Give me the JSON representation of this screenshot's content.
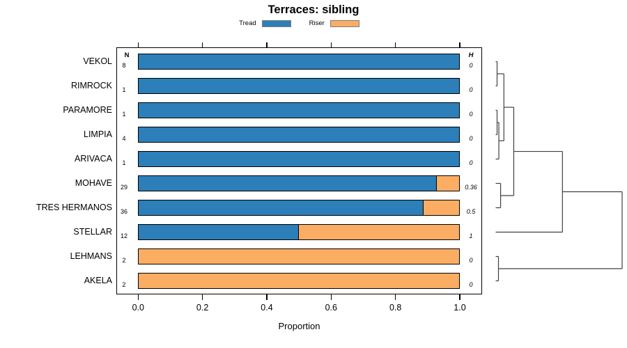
{
  "title": "Terraces: sibling",
  "legend": {
    "items": [
      {
        "label": "Tread",
        "color": "#2c7fb8"
      },
      {
        "label": "Riser",
        "color": "#fbad63"
      }
    ]
  },
  "columns": {
    "n_header": "N",
    "h_header": "H"
  },
  "axis": {
    "xlabel": "Proportion",
    "ticks": [
      {
        "label": "0.0",
        "value": 0.0
      },
      {
        "label": "0.2",
        "value": 0.2
      },
      {
        "label": "0.4",
        "value": 0.4
      },
      {
        "label": "0.6",
        "value": 0.6
      },
      {
        "label": "0.8",
        "value": 0.8
      },
      {
        "label": "1.0",
        "value": 1.0
      }
    ]
  },
  "chart_data": {
    "type": "bar",
    "orientation": "horizontal",
    "stacked": true,
    "title": "Terraces: sibling",
    "xlabel": "Proportion",
    "xlim": [
      0,
      1
    ],
    "grid": false,
    "categories": [
      "VEKOL",
      "RIMROCK",
      "PARAMORE",
      "LIMPIA",
      "ARIVACA",
      "MOHAVE",
      "TRES HERMANOS",
      "STELLAR",
      "LEHMANS",
      "AKELA"
    ],
    "series": [
      {
        "name": "Tread",
        "color": "#2c7fb8",
        "values": [
          1,
          1,
          1,
          1,
          1,
          0.931,
          0.889,
          0.5,
          0,
          0
        ]
      },
      {
        "name": "Riser",
        "color": "#fbad63",
        "values": [
          0,
          0,
          0,
          0,
          0,
          0.069,
          0.111,
          0.5,
          1,
          1
        ]
      }
    ],
    "n_values": [
      8,
      1,
      1,
      4,
      1,
      29,
      36,
      12,
      2,
      2
    ],
    "h_values": [
      "0",
      "0",
      "0",
      "0",
      "0",
      "0.36",
      "0.5",
      "1",
      "0",
      "0"
    ],
    "dendrogram": {
      "line_color": "#404040",
      "nodes": [
        {
          "id": "n1",
          "children": [
            "VEKOL",
            "RIMROCK"
          ],
          "height": 0.011
        },
        {
          "id": "n2",
          "children": [
            "PARAMORE",
            "LIMPIA"
          ],
          "height": 0.011
        },
        {
          "id": "n3",
          "children": [
            "n2",
            "ARIVACA"
          ],
          "height": 0.025
        },
        {
          "id": "n4",
          "children": [
            "n1",
            "n3"
          ],
          "height": 0.065
        },
        {
          "id": "n5",
          "children": [
            "MOHAVE",
            "TRES HERMANOS"
          ],
          "height": 0.039
        },
        {
          "id": "n6",
          "children": [
            "n4",
            "n5"
          ],
          "height": 0.143
        },
        {
          "id": "n7",
          "children": [
            "n6",
            "STELLAR"
          ],
          "height": 0.528
        },
        {
          "id": "n8",
          "children": [
            "LEHMANS",
            "AKELA"
          ],
          "height": 0.022
        },
        {
          "id": "n9",
          "children": [
            "n7",
            "n8"
          ],
          "height": 1.0
        }
      ]
    }
  }
}
